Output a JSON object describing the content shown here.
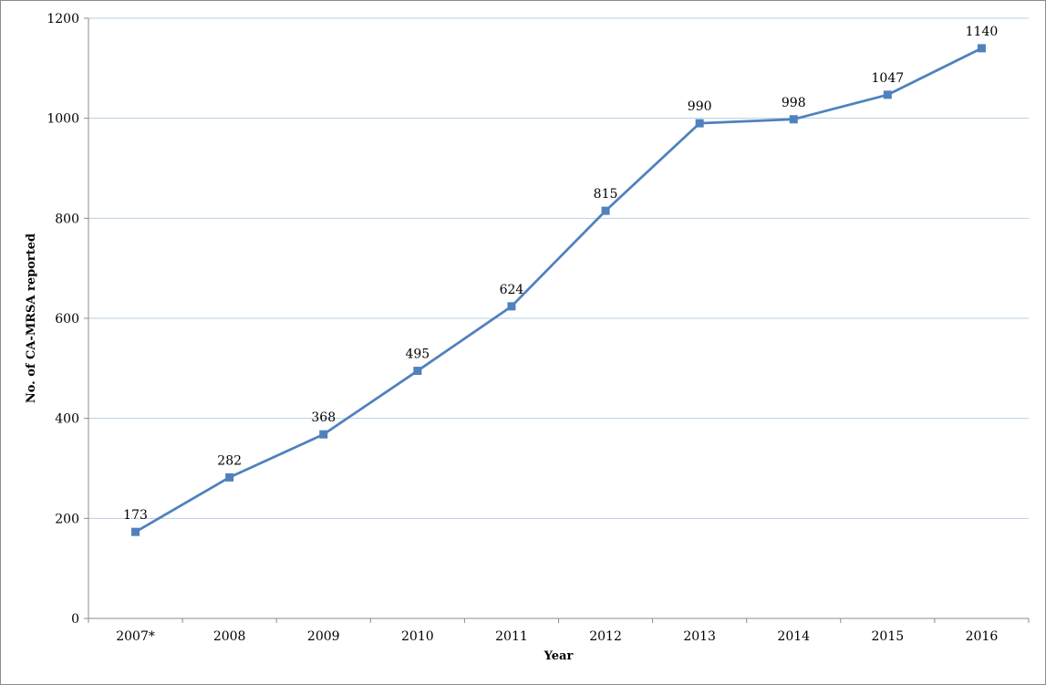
{
  "chart_data": {
    "type": "line",
    "title": "",
    "xlabel": "Year",
    "ylabel": "No. of CA-MRSA reported",
    "categories": [
      "2007*",
      "2008",
      "2009",
      "2010",
      "2011",
      "2012",
      "2013",
      "2014",
      "2015",
      "2016"
    ],
    "series": [
      {
        "values": [
          173,
          282,
          368,
          495,
          624,
          815,
          990,
          998,
          1047,
          1140
        ],
        "color": "#4f81bd"
      }
    ],
    "data_labels": [
      "173",
      "282",
      "368",
      "495",
      "624",
      "815",
      "990",
      "998",
      "1047",
      "1140"
    ],
    "ylim": [
      0,
      1200
    ],
    "yticks": [
      0,
      200,
      400,
      600,
      800,
      1000,
      1200
    ],
    "ytick_labels": [
      "0",
      "200",
      "400",
      "600",
      "800",
      "1000",
      "1200"
    ],
    "grid": true,
    "legend": "none",
    "colors": {
      "gridline": "#b9cde5",
      "axis": "#8c8c8c",
      "line": "#4f81bd"
    }
  }
}
